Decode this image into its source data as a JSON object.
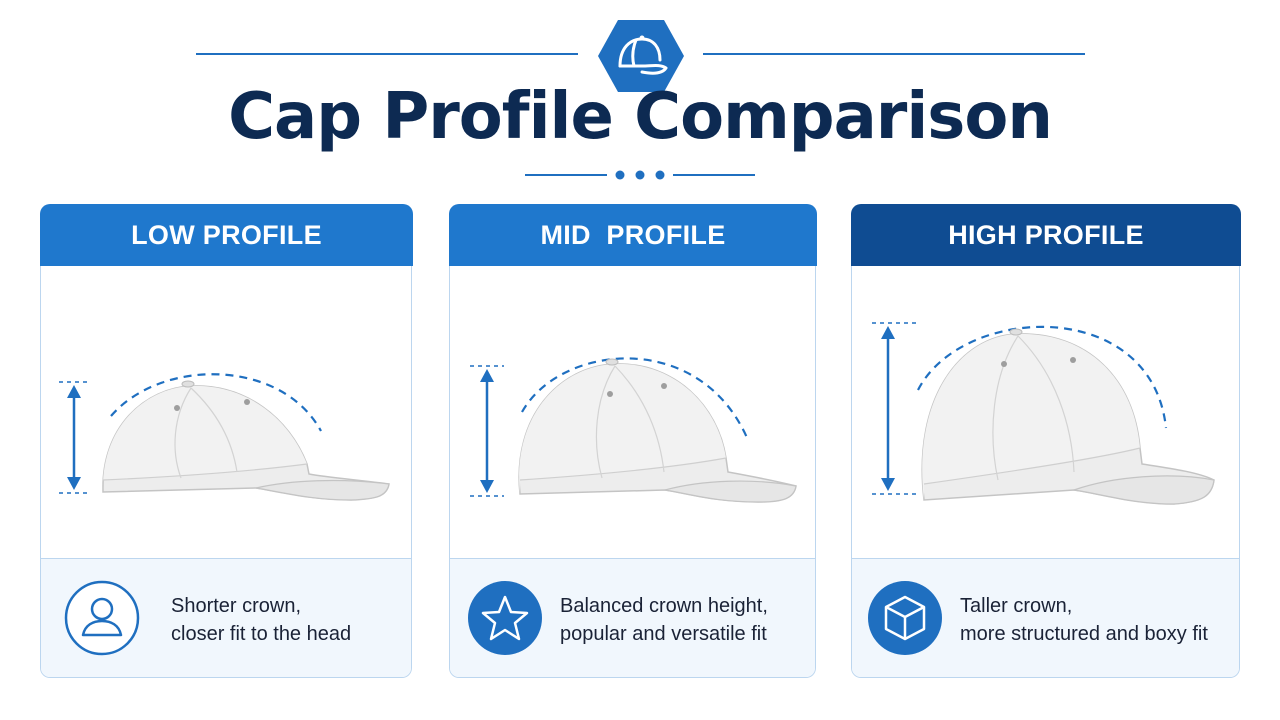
{
  "header": {
    "title": "Cap Profile Comparison",
    "badge_icon": "cap-icon",
    "accent_color": "#1f6fc0",
    "title_color": "#0d2a52"
  },
  "cards": [
    {
      "label": "LOW PROFILE",
      "tab_color": "#1f78cd",
      "description": [
        "Shorter crown,",
        "closer fit to the head"
      ],
      "icon": "user-icon",
      "icon_style": "outline"
    },
    {
      "label": "MID  PROFILE",
      "tab_color": "#1f78cd",
      "description": [
        "Balanced crown height,",
        "popular and versatile fit"
      ],
      "icon": "star-icon",
      "icon_style": "filled"
    },
    {
      "label": "HIGH PROFILE",
      "tab_color": "#0f4c92",
      "description": [
        "Taller crown,",
        "more structured and boxy fit"
      ],
      "icon": "cube-icon",
      "icon_style": "filled"
    }
  ]
}
